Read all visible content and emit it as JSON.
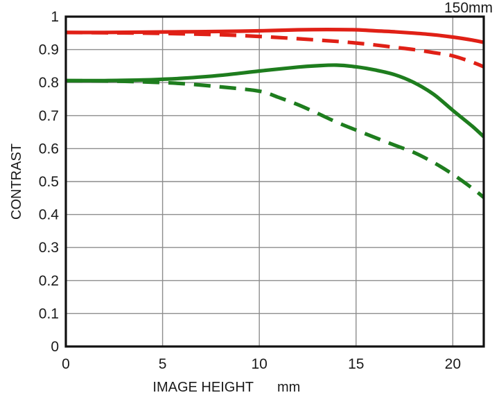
{
  "chart_data": {
    "type": "line",
    "title": "150mm",
    "xlabel": "IMAGE HEIGHT",
    "x_unit": "mm",
    "ylabel": "CONTRAST",
    "xlim": [
      0,
      21.6
    ],
    "ylim": [
      0,
      1
    ],
    "x_ticks": [
      0,
      5,
      10,
      15,
      20
    ],
    "y_ticks": [
      0,
      0.1,
      0.2,
      0.3,
      0.4,
      0.5,
      0.6,
      0.7,
      0.8,
      0.9,
      1
    ],
    "grid": true,
    "legend": "none",
    "colors": {
      "red": "#e02016",
      "green": "#1e7d1e",
      "grid": "#8c8c8c",
      "frame": "#111111",
      "background": "#ffffff",
      "text": "#1a1a1a"
    },
    "series": [
      {
        "name": "red-solid",
        "color": "#e02016",
        "style": "solid",
        "x": [
          0,
          2,
          4,
          6,
          8,
          10,
          12,
          13.5,
          15,
          16,
          17,
          18,
          19,
          20,
          21,
          21.6
        ],
        "y": [
          0.952,
          0.952,
          0.953,
          0.954,
          0.955,
          0.957,
          0.96,
          0.961,
          0.96,
          0.957,
          0.954,
          0.95,
          0.945,
          0.938,
          0.929,
          0.922
        ]
      },
      {
        "name": "red-dashed",
        "color": "#e02016",
        "style": "dashed",
        "x": [
          0,
          2,
          4,
          6,
          8,
          10,
          12,
          14,
          15,
          16,
          17,
          18,
          19,
          20,
          21,
          21.6
        ],
        "y": [
          0.952,
          0.951,
          0.95,
          0.948,
          0.945,
          0.94,
          0.933,
          0.925,
          0.92,
          0.914,
          0.907,
          0.9,
          0.891,
          0.881,
          0.862,
          0.848
        ]
      },
      {
        "name": "green-solid",
        "color": "#1e7d1e",
        "style": "solid",
        "x": [
          0,
          2,
          4,
          5,
          6,
          8,
          10,
          12,
          13,
          14,
          15,
          16,
          17,
          18,
          19,
          20,
          21,
          21.6
        ],
        "y": [
          0.806,
          0.806,
          0.808,
          0.81,
          0.813,
          0.822,
          0.835,
          0.847,
          0.851,
          0.853,
          0.848,
          0.838,
          0.824,
          0.8,
          0.765,
          0.716,
          0.668,
          0.636
        ]
      },
      {
        "name": "green-dashed",
        "color": "#1e7d1e",
        "style": "dashed",
        "x": [
          0,
          2,
          4,
          6,
          8,
          10,
          11,
          12,
          13,
          14,
          15,
          16,
          17,
          18,
          19,
          20,
          21,
          21.6
        ],
        "y": [
          0.806,
          0.805,
          0.802,
          0.797,
          0.787,
          0.774,
          0.755,
          0.733,
          0.707,
          0.68,
          0.656,
          0.633,
          0.61,
          0.588,
          0.558,
          0.522,
          0.48,
          0.452
        ]
      }
    ]
  }
}
